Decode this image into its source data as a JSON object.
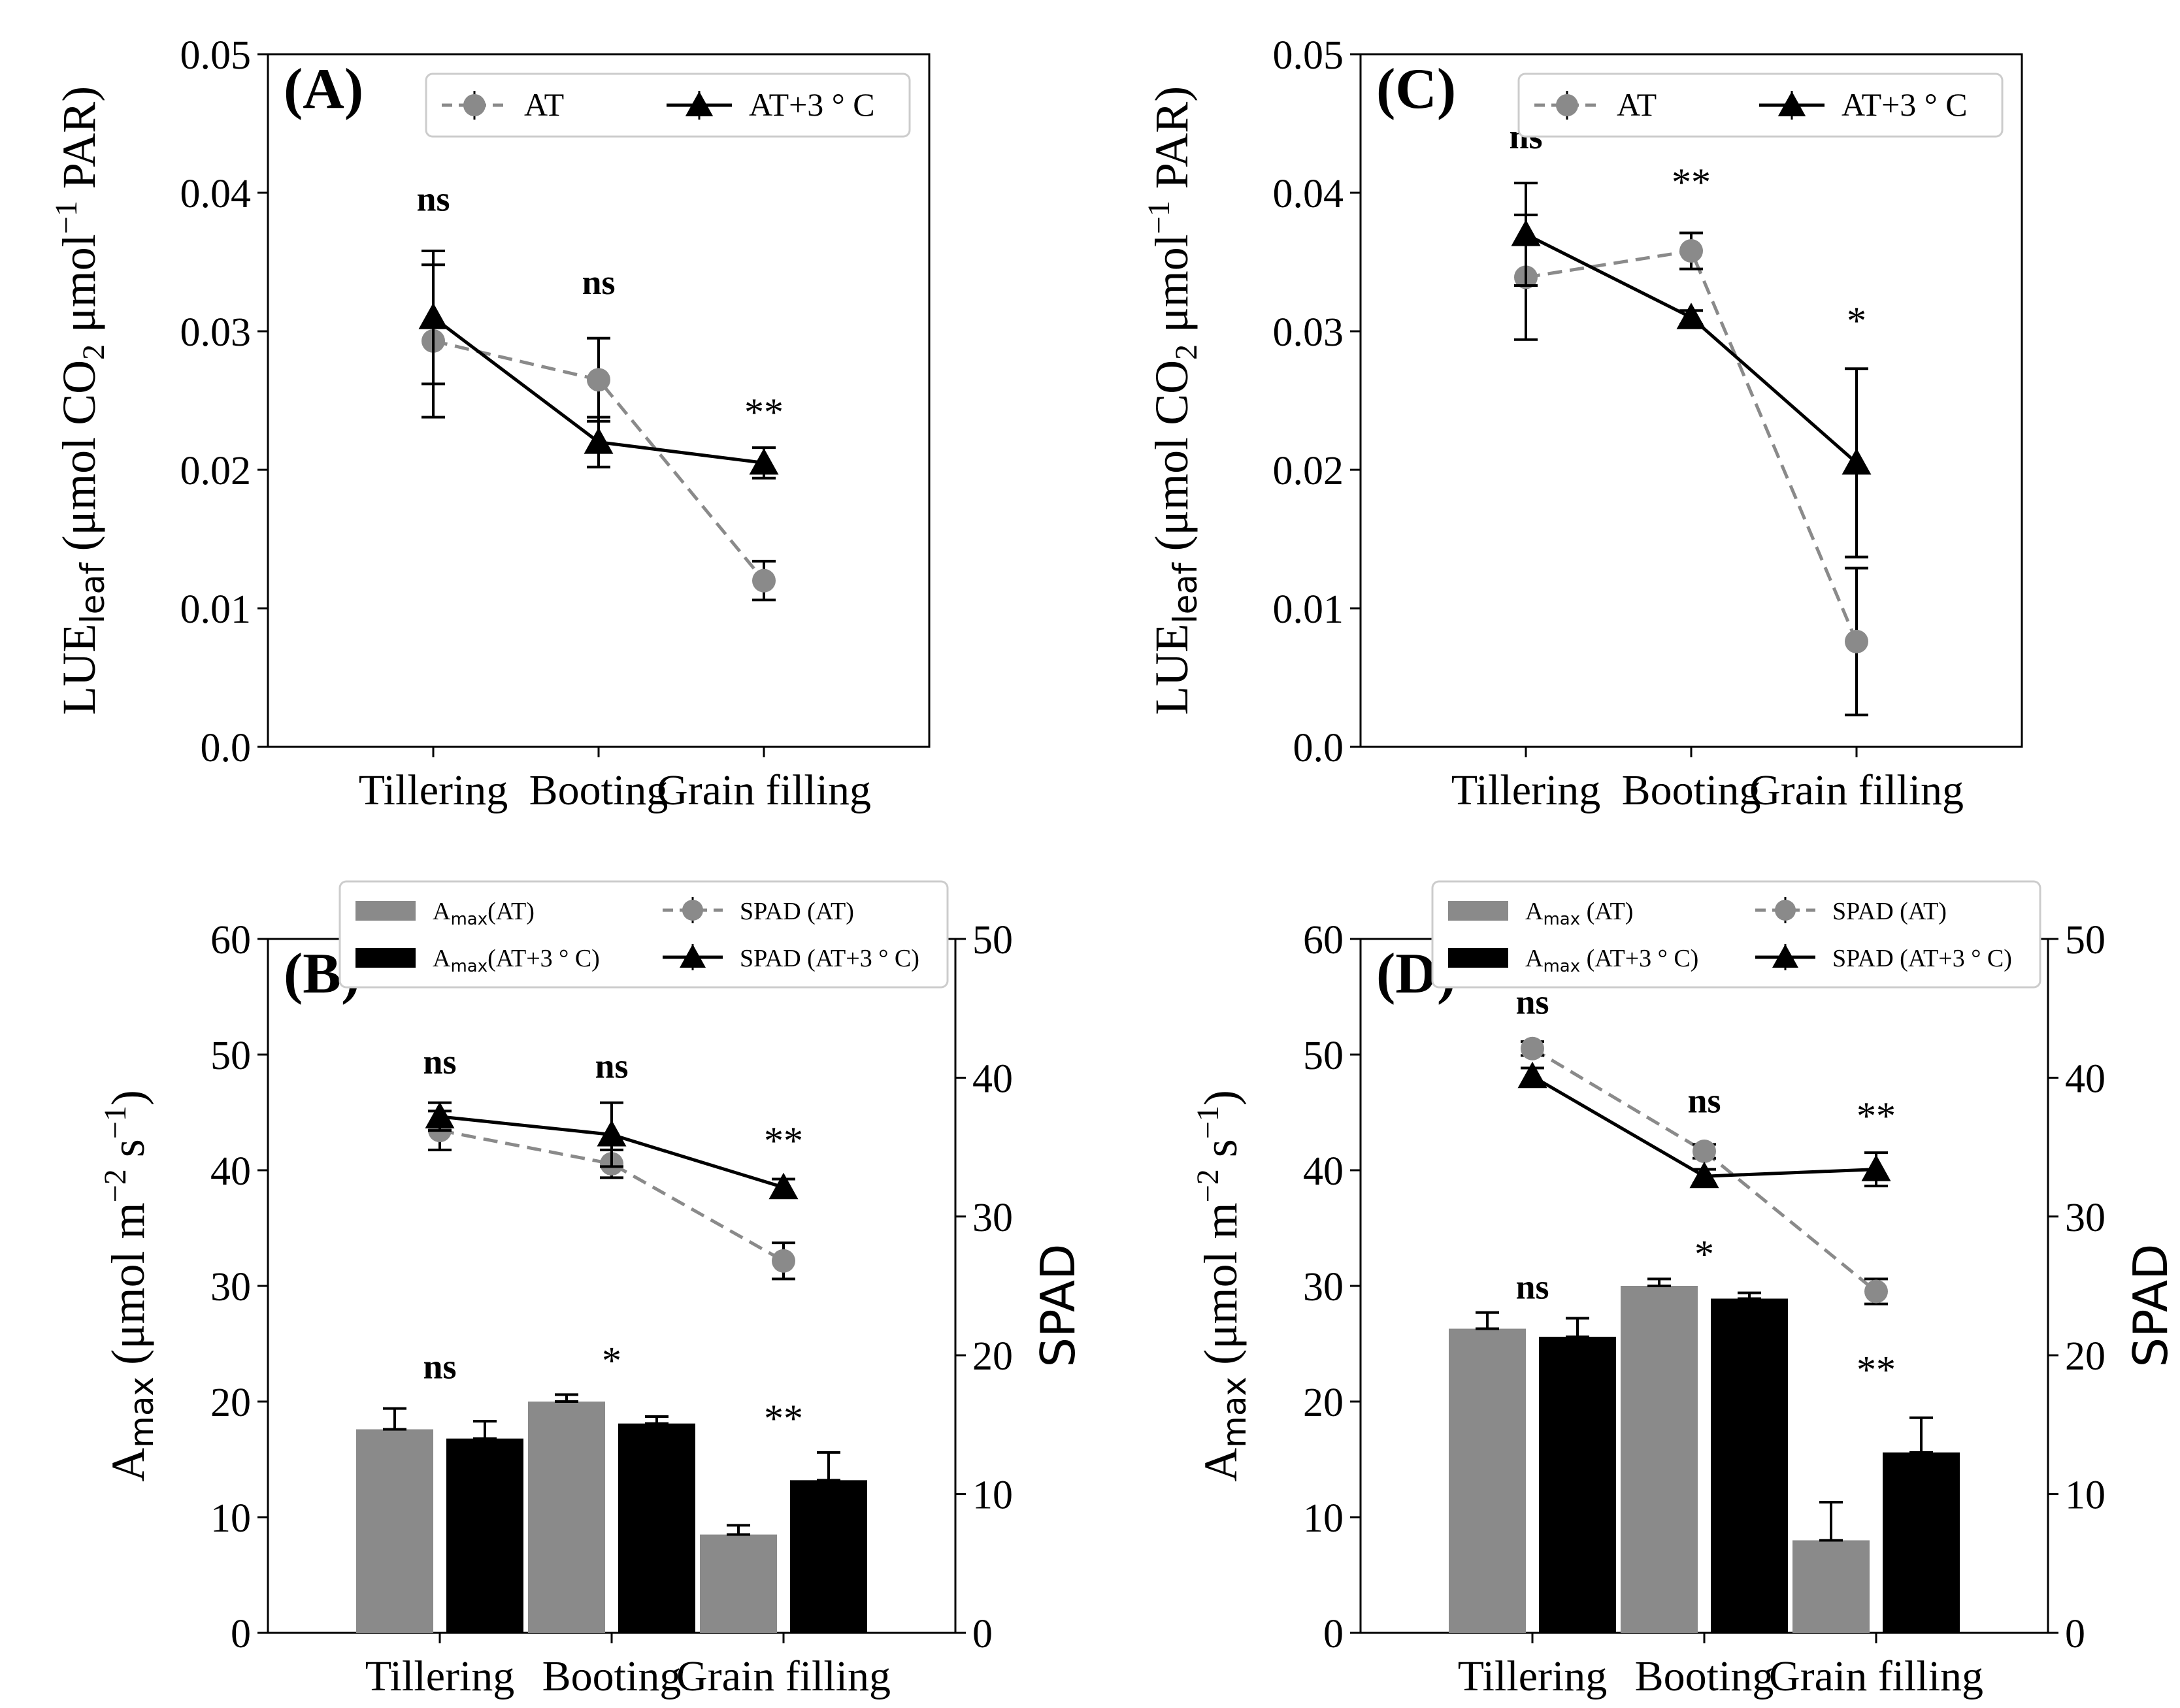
{
  "figure": {
    "categories": [
      "Tillering",
      "Booting",
      "Grain filling"
    ],
    "colors": {
      "at": "#8a8a8a",
      "heat": "#000000"
    },
    "lue_axis": {
      "ylabel_main": "LUE",
      "ylabel_sub": "leaf",
      "ylabel_rest": " (μmol CO",
      "ylabel_sub2": "2",
      "ylabel_rest2": " μmol",
      "ylabel_sup": "−1",
      "ylabel_end": " PAR)",
      "ylim": [
        0,
        0.05
      ],
      "ticks": [
        "0.0",
        "0.01",
        "0.02",
        "0.03",
        "0.04",
        "0.05"
      ]
    },
    "amax_axis": {
      "ylabel_main": "A",
      "ylabel_sub": "max",
      "ylabel_rest": " (μmol m",
      "ylabel_sup1": "−2",
      "ylabel_mid": " s",
      "ylabel_sup2": "−1",
      "ylabel_end": ")",
      "ylim": [
        0,
        60
      ],
      "ticks": [
        "0",
        "10",
        "20",
        "30",
        "40",
        "50",
        "60"
      ],
      "y2label": "SPAD",
      "y2lim": [
        0,
        50
      ],
      "y2ticks": [
        "0",
        "10",
        "20",
        "30",
        "40",
        "50"
      ]
    }
  },
  "chart_data": [
    {
      "panel": "(A)",
      "type": "line",
      "legend": [
        {
          "name": "AT",
          "style": "dashed-circle"
        },
        {
          "name": "AT+3 ° C",
          "style": "solid-triangle"
        }
      ],
      "legend_position": "top-right",
      "series": [
        {
          "name": "AT",
          "values": [
            0.0293,
            0.0265,
            0.012
          ],
          "errors": [
            0.0055,
            0.003,
            0.0014
          ]
        },
        {
          "name": "AT+3 ° C",
          "values": [
            0.031,
            0.022,
            0.0205
          ],
          "errors": [
            0.0048,
            0.0018,
            0.0011
          ]
        }
      ],
      "significance": [
        {
          "label": "ns",
          "value": 0.0387,
          "bold": true
        },
        {
          "label": "ns",
          "value": 0.0327,
          "bold": true
        },
        {
          "label": "**",
          "value": 0.0232,
          "bold": false
        }
      ]
    },
    {
      "panel": "(B)",
      "type": "bar",
      "legend": [
        {
          "name_main": "A",
          "name_sub": "max",
          "name_rest": "(AT)",
          "style": "bar-gray"
        },
        {
          "name_main": "A",
          "name_sub": "max",
          "name_rest": "(AT+3 ° C)",
          "style": "bar-black"
        },
        {
          "name": "SPAD (AT)",
          "style": "dashed-circle"
        },
        {
          "name": "SPAD (AT+3 ° C)",
          "style": "solid-triangle"
        }
      ],
      "legend_position": "top-right",
      "bars": [
        {
          "name": "Amax(AT)",
          "values": [
            17.6,
            20.0,
            8.5
          ],
          "errors": [
            1.8,
            0.6,
            0.8
          ]
        },
        {
          "name": "Amax(AT+3 ° C)",
          "values": [
            16.8,
            18.1,
            13.2
          ],
          "errors": [
            1.5,
            0.6,
            2.4
          ]
        }
      ],
      "lines": [
        {
          "name": "SPAD (AT)",
          "values": [
            36.2,
            33.8,
            26.8
          ],
          "errors": [
            1.4,
            1.0,
            1.3
          ]
        },
        {
          "name": "SPAD (AT+3 ° C)",
          "values": [
            37.2,
            35.9,
            32.1
          ],
          "errors": [
            1.0,
            2.3,
            0.6
          ]
        }
      ],
      "bar_significance": [
        {
          "label": "ns",
          "value": 22.0,
          "bold": true
        },
        {
          "label": "*",
          "value": 22.4,
          "bold": false
        },
        {
          "label": "**",
          "value": 17.4,
          "bold": false
        }
      ],
      "line_significance": [
        {
          "label": "ns",
          "value": 40.3,
          "bold": true
        },
        {
          "label": "ns",
          "value": 40.0,
          "bold": true
        },
        {
          "label": "**",
          "value": 34.5,
          "bold": false
        }
      ]
    },
    {
      "panel": "(C)",
      "type": "line",
      "legend": [
        {
          "name": "AT",
          "style": "dashed-circle"
        },
        {
          "name": "AT+3 ° C",
          "style": "solid-triangle"
        }
      ],
      "legend_position": "top-right",
      "series": [
        {
          "name": "AT",
          "values": [
            0.0339,
            0.0358,
            0.0076
          ],
          "errors": [
            0.0045,
            0.0013,
            0.0053
          ]
        },
        {
          "name": "AT+3 ° C",
          "values": [
            0.037,
            0.031,
            0.0205
          ],
          "errors": [
            0.0037,
            0.0005,
            0.0068
          ]
        }
      ],
      "significance": [
        {
          "label": "ns",
          "value": 0.0432,
          "bold": true
        },
        {
          "label": "**",
          "value": 0.0398,
          "bold": false
        },
        {
          "label": "*",
          "value": 0.0298,
          "bold": false
        }
      ]
    },
    {
      "panel": "(D)",
      "type": "bar",
      "legend": [
        {
          "name_main": "A",
          "name_sub": "max",
          "name_rest": " (AT)",
          "style": "bar-gray"
        },
        {
          "name_main": "A",
          "name_sub": "max",
          "name_rest": " (AT+3 ° C)",
          "style": "bar-black"
        },
        {
          "name": "SPAD (AT)",
          "style": "dashed-circle"
        },
        {
          "name": "SPAD (AT+3 ° C)",
          "style": "solid-triangle"
        }
      ],
      "legend_position": "top-right",
      "bars": [
        {
          "name": "Amax (AT)",
          "values": [
            26.3,
            30.0,
            8.0
          ],
          "errors": [
            1.4,
            0.6,
            3.3
          ]
        },
        {
          "name": "Amax (AT+3 ° C)",
          "values": [
            25.6,
            28.9,
            15.6
          ],
          "errors": [
            1.6,
            0.5,
            3.0
          ]
        }
      ],
      "lines": [
        {
          "name": "SPAD (AT)",
          "values": [
            42.1,
            34.7,
            24.6
          ],
          "errors": [
            0.5,
            0.5,
            0.9
          ]
        },
        {
          "name": "SPAD (AT+3 ° C)",
          "values": [
            40.1,
            32.9,
            33.4
          ],
          "errors": [
            0.6,
            0.5,
            1.2
          ]
        }
      ],
      "bar_significance": [
        {
          "label": "ns",
          "value": 28.9,
          "bold": true
        },
        {
          "label": "*",
          "value": 31.6,
          "bold": false
        },
        {
          "label": "**",
          "value": 21.6,
          "bold": false
        }
      ],
      "line_significance": [
        {
          "label": "ns",
          "value": 44.6,
          "bold": true
        },
        {
          "label": "ns",
          "value": 37.5,
          "bold": true
        },
        {
          "label": "**",
          "value": 36.3,
          "bold": false
        }
      ]
    }
  ]
}
